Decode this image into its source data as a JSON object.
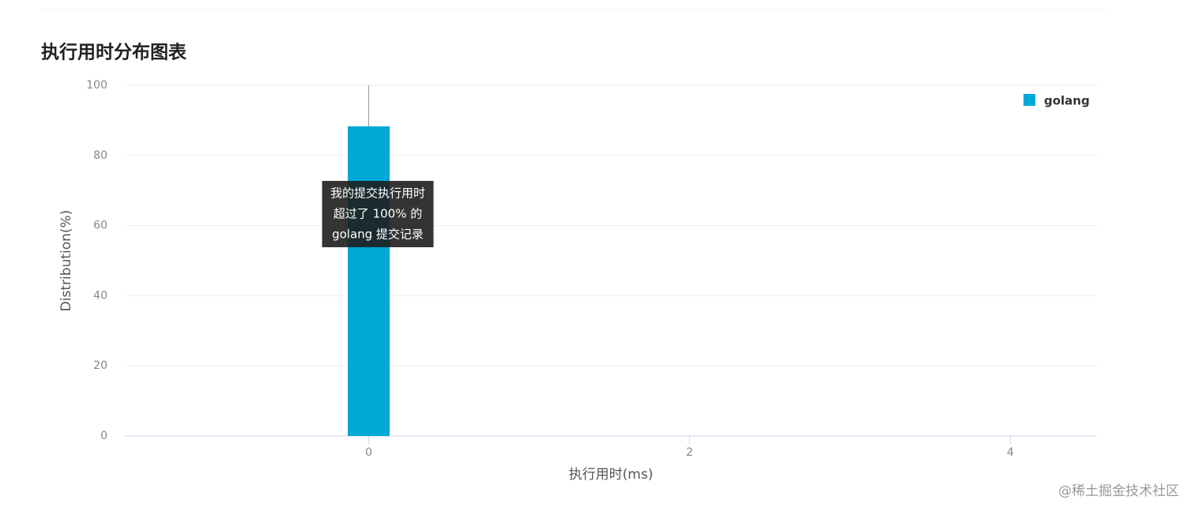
{
  "chart_data": {
    "type": "bar",
    "title": "执行用时分布图表",
    "x": [
      0
    ],
    "series": [
      {
        "name": "golang",
        "color": "#00a9d6",
        "values": [
          88.3
        ]
      }
    ],
    "xlim": [
      -1.52,
      4.54
    ],
    "xticks": [
      0,
      2,
      4
    ],
    "ylim": [
      0,
      100
    ],
    "yticks": [
      0,
      20,
      40,
      60,
      80,
      100
    ],
    "x_label": "执行用时(ms)",
    "y_label": "Distribution(%)",
    "grid": true,
    "legend": "top-right",
    "tooltip": [
      "我的提交执行用时",
      "超过了 100% 的",
      "golang 提交记录"
    ]
  },
  "watermark": "@稀土掘金技术社区"
}
